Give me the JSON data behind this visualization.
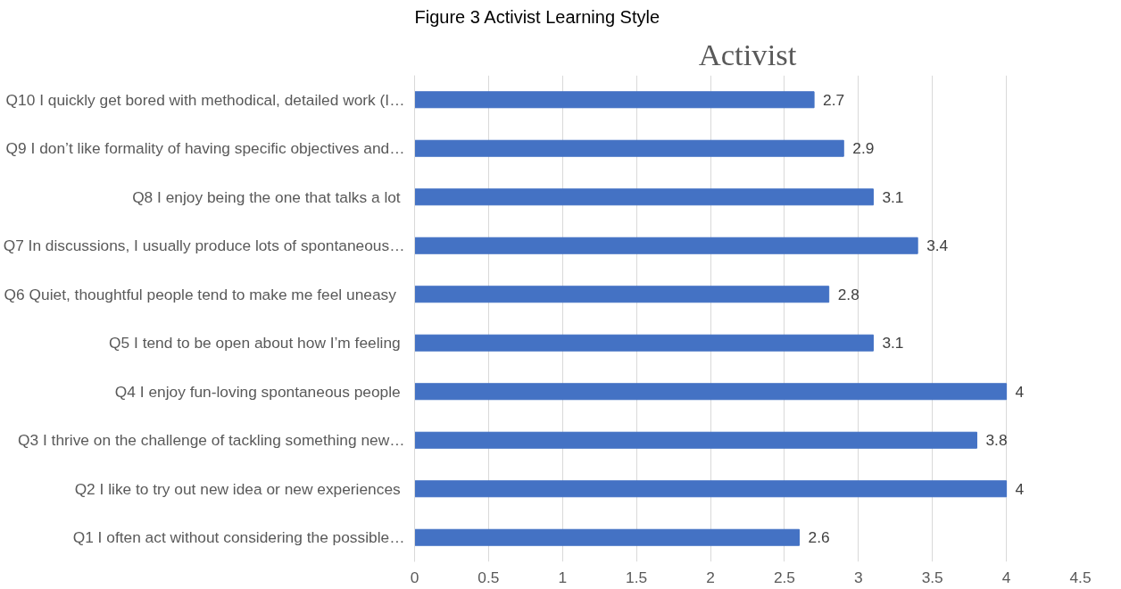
{
  "chart_data": {
    "type": "bar",
    "orientation": "horizontal",
    "title": "Activist",
    "annotations": [
      "Figure 3 Activist Learning Style"
    ],
    "categories": [
      "Q10 I quickly get bored with methodical, detailed work (I…",
      "Q9 I don’t like formality of having specific objectives and…",
      "Q8 I enjoy being the one that talks a lot ",
      "Q7 In discussions, I usually produce lots of spontaneous…",
      "Q6 Quiet, thoughtful people tend to make me feel uneasy  ",
      "Q5 I tend to be open about how I’m feeling ",
      "Q4 I enjoy fun-loving spontaneous people ",
      "Q3 I thrive on the challenge of tackling something new…",
      "Q2 I like to try out new idea or new experiences ",
      "Q1 I often act without considering the possible…"
    ],
    "values": [
      2.7,
      2.9,
      3.1,
      3.4,
      2.8,
      3.1,
      4,
      3.8,
      4,
      2.6
    ],
    "color": "#4472c4",
    "xlim": [
      0,
      4.5
    ],
    "xticks": [
      0,
      0.5,
      1,
      1.5,
      2,
      2.5,
      3,
      3.5,
      4,
      4.5
    ],
    "grid": "x",
    "data_labels": true
  }
}
